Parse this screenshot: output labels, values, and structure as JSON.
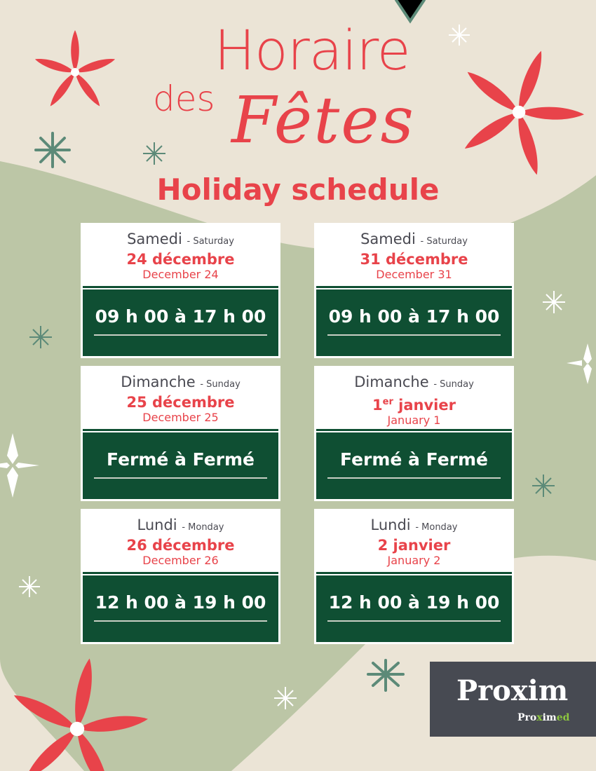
{
  "title": {
    "line1": "Horaire",
    "des": "des",
    "fetes": "Fêtes",
    "line2": "Holiday schedule"
  },
  "days": [
    {
      "fr_day": "Samedi",
      "en_day": "- Saturday",
      "fr_date": "24 décembre",
      "en_date": "December 24",
      "hours": "09 h 00 à 17 h 00"
    },
    {
      "fr_day": "Samedi",
      "en_day": "- Saturday",
      "fr_date": "31 décembre",
      "en_date": "December 31",
      "hours": "09 h 00 à 17 h 00"
    },
    {
      "fr_day": "Dimanche",
      "en_day": "- Sunday",
      "fr_date": "25 décembre",
      "en_date": "December 25",
      "hours": "Fermé à Fermé"
    },
    {
      "fr_day": "Dimanche",
      "en_day": "- Sunday",
      "fr_date_num": "1",
      "fr_date_sup": "er",
      "fr_date": " janvier",
      "en_date": "January 1",
      "hours": "Fermé à Fermé"
    },
    {
      "fr_day": "Lundi",
      "en_day": "- Monday",
      "fr_date": "26 décembre",
      "en_date": "December 26",
      "hours": "12 h 00 à 19 h 00"
    },
    {
      "fr_day": "Lundi",
      "en_day": "- Monday",
      "fr_date": "2 janvier",
      "en_date": "January 2",
      "hours": "12 h 00 à 19 h 00"
    }
  ],
  "logo": {
    "brand": "Proxim",
    "sub_a": "Pro",
    "sub_b": "x",
    "sub_c": "im",
    "sub_d": "ed"
  },
  "colors": {
    "red": "#e8434a",
    "green": "#0f4f33",
    "beige": "#ebe4d6",
    "sage": "#bcc6a6",
    "logo_bg": "#474a52"
  }
}
